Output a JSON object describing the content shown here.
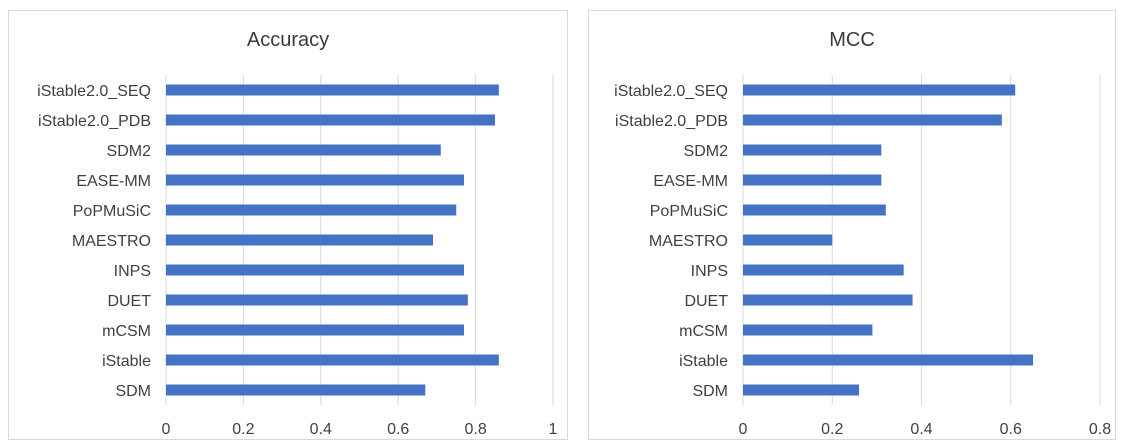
{
  "bar_color": "#4472C4",
  "grid_color": "#d9d9d9",
  "text_color": "#404040",
  "chart_data": [
    {
      "type": "bar",
      "orientation": "horizontal",
      "title": "Accuracy",
      "xlabel": "",
      "ylabel": "",
      "grid": true,
      "legend": "none",
      "xlim": [
        0,
        1
      ],
      "x_ticks": [
        0,
        0.2,
        0.4,
        0.6,
        0.8,
        1
      ],
      "x_tick_labels": [
        "0",
        "0.2",
        "0.4",
        "0.6",
        "0.8",
        "1"
      ],
      "categories": [
        "iStable2.0_SEQ",
        "iStable2.0_PDB",
        "SDM2",
        "EASE-MM",
        "PoPMuSiC",
        "MAESTRO",
        "INPS",
        "DUET",
        "mCSM",
        "iStable",
        "SDM"
      ],
      "values": [
        0.86,
        0.85,
        0.71,
        0.77,
        0.75,
        0.69,
        0.77,
        0.78,
        0.77,
        0.86,
        0.67
      ]
    },
    {
      "type": "bar",
      "orientation": "horizontal",
      "title": "MCC",
      "xlabel": "",
      "ylabel": "",
      "grid": true,
      "legend": "none",
      "xlim": [
        0,
        0.8
      ],
      "x_ticks": [
        0,
        0.2,
        0.4,
        0.6,
        0.8
      ],
      "x_tick_labels": [
        "0",
        "0.2",
        "0.4",
        "0.6",
        "0.8"
      ],
      "categories": [
        "iStable2.0_SEQ",
        "iStable2.0_PDB",
        "SDM2",
        "EASE-MM",
        "PoPMuSiC",
        "MAESTRO",
        "INPS",
        "DUET",
        "mCSM",
        "iStable",
        "SDM"
      ],
      "values": [
        0.61,
        0.58,
        0.31,
        0.31,
        0.32,
        0.2,
        0.36,
        0.38,
        0.29,
        0.65,
        0.26
      ]
    }
  ]
}
